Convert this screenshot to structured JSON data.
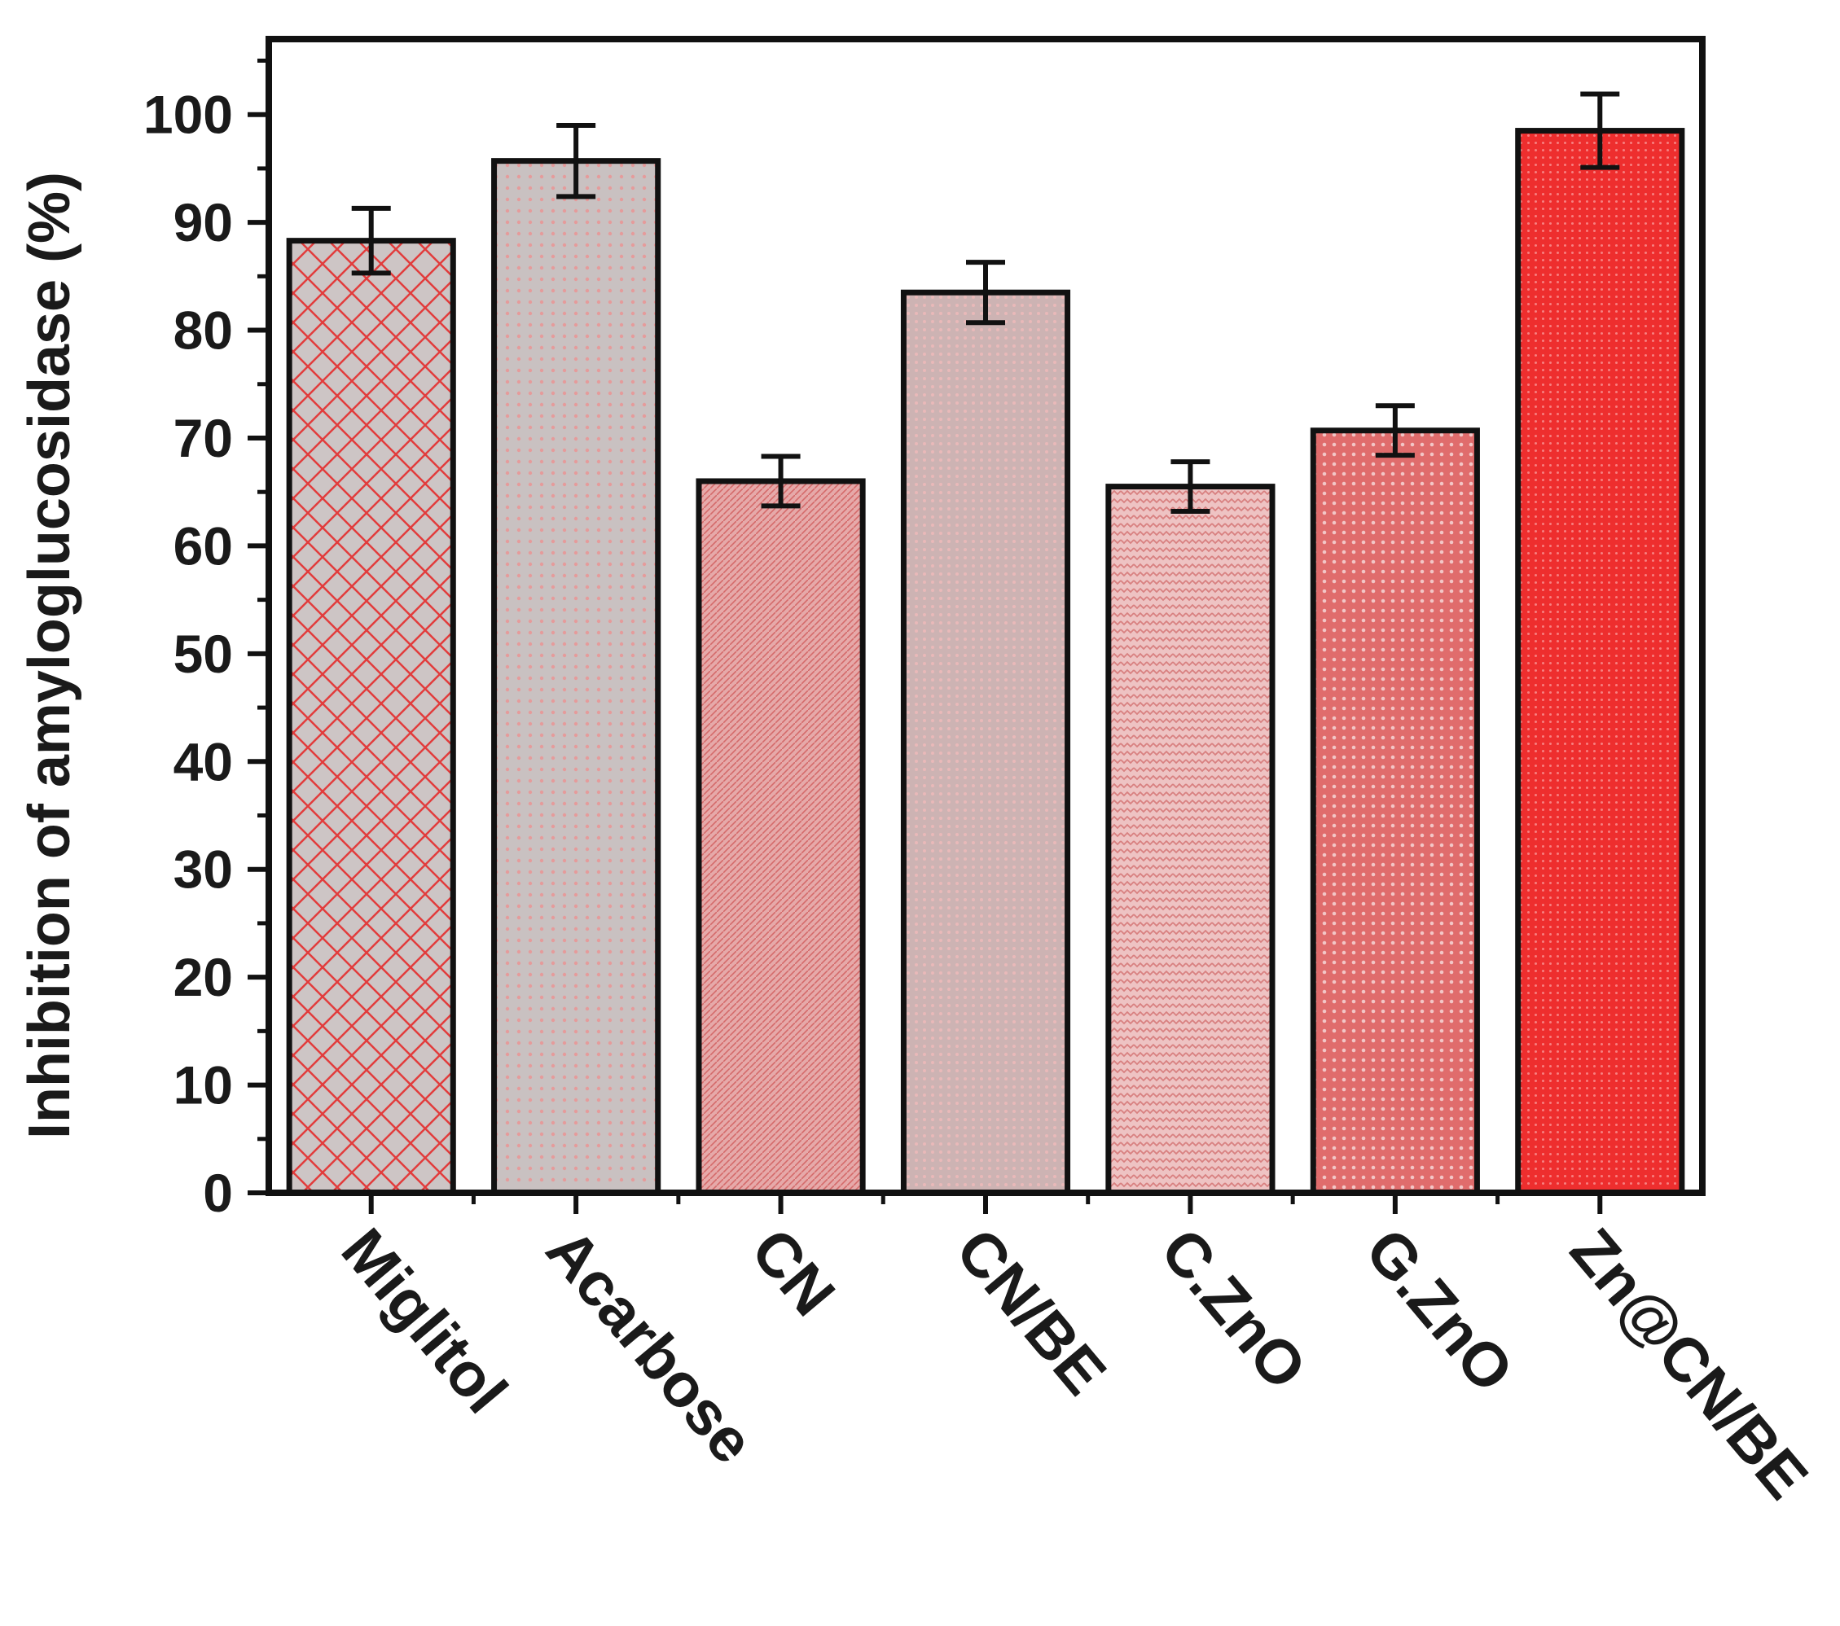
{
  "chart_data": {
    "type": "bar",
    "title": "",
    "xlabel": "",
    "ylabel": "Inhibition of amyloglucosidase (%)",
    "ylim": [
      0,
      107
    ],
    "yticks": [
      0,
      10,
      20,
      30,
      40,
      50,
      60,
      70,
      80,
      90,
      100
    ],
    "grid": false,
    "legend": "none",
    "categories": [
      "Miglitol",
      "Acarbose",
      "CN",
      "CN/BE",
      "C.ZnO",
      "G.ZnO",
      "Zn@CN/BE"
    ],
    "values": [
      88.3,
      95.7,
      66.0,
      83.5,
      65.5,
      70.7,
      98.5
    ],
    "errors": [
      3.0,
      3.3,
      2.3,
      2.8,
      2.3,
      2.3,
      3.4
    ],
    "colors": {
      "bar_fills": [
        "#e6bcbc",
        "#c8c0c0",
        "#dc8f8f",
        "#cdb0b0",
        "#e5a7a7",
        "#e07878",
        "#ee3333"
      ],
      "pattern_ink": "#e23c3c",
      "axis": "#111111"
    }
  }
}
